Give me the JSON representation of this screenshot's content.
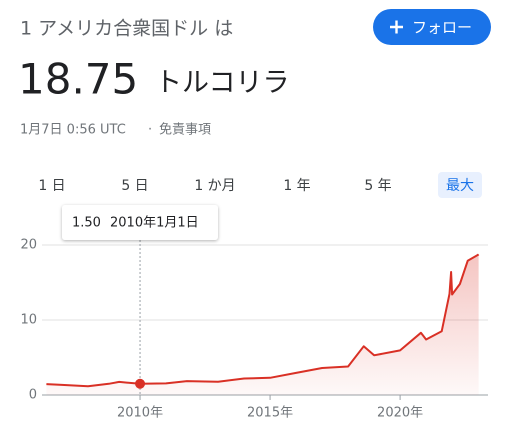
{
  "header": {
    "title": "1 アメリカ合衆国ドル は",
    "rate": "18.75",
    "currency": "トルコリラ",
    "timestamp": "1月7日 0:56 UTC",
    "separator": "·",
    "disclaimer": "免責事項",
    "follow_button": "フォロー"
  },
  "tabs": {
    "items": [
      "1 日",
      "5 日",
      "1 か月",
      "1 年",
      "5 年",
      "最大"
    ],
    "selected": 5
  },
  "chart_data": {
    "type": "line",
    "x": [
      2006.4,
      2007,
      2008,
      2008.8,
      2009.2,
      2010,
      2011,
      2011.8,
      2012.5,
      2013,
      2014,
      2015,
      2016,
      2017,
      2018,
      2018.6,
      2019,
      2020,
      2020.8,
      2021,
      2021.6,
      2021.9,
      2021.96,
      2022,
      2022.3,
      2022.6,
      2023,
      2023.02
    ],
    "series": [
      {
        "color": "#d93025",
        "values": [
          1.45,
          1.35,
          1.17,
          1.5,
          1.75,
          1.5,
          1.55,
          1.85,
          1.8,
          1.77,
          2.2,
          2.3,
          2.95,
          3.6,
          3.8,
          6.5,
          5.3,
          5.95,
          8.3,
          7.4,
          8.5,
          13.5,
          16.4,
          13.4,
          14.8,
          17.9,
          18.7,
          18.75
        ]
      }
    ],
    "xlim": [
      2006.23,
      2023.38
    ],
    "ylim": [
      0,
      20
    ],
    "yticks": [
      0,
      10,
      20
    ],
    "xticks": [
      {
        "value": 2010,
        "label": "2010年"
      },
      {
        "value": 2015,
        "label": "2015年"
      },
      {
        "value": 2020,
        "label": "2020年"
      }
    ],
    "grid": true,
    "tooltip": {
      "x": 2010,
      "value": 1.5,
      "label": "1.50",
      "date": "2010年1月1日"
    }
  }
}
